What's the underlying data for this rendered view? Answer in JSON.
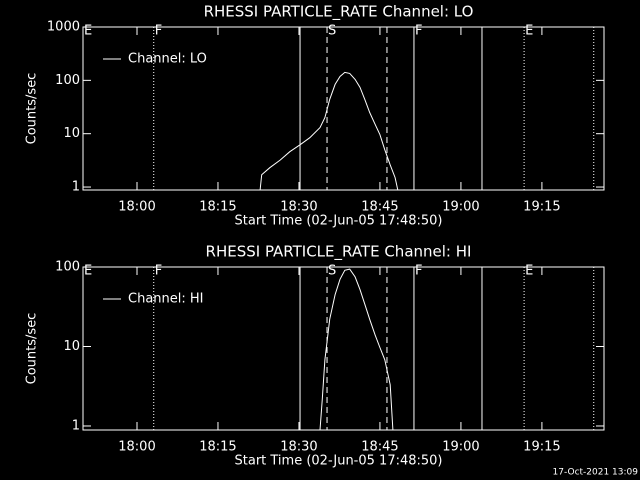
{
  "chart_data": [
    {
      "type": "line",
      "title": "RHESSI PARTICLE_RATE Channel: LO",
      "x_label": "Start Time (02-Jun-05 17:48:50)",
      "y_label": "Counts/sec",
      "log_y": true,
      "color": "#ffffff",
      "xlim": [
        1070,
        1166.5
      ],
      "xticks": [
        {
          "value": 1080,
          "label": "18:00"
        },
        {
          "value": 1095,
          "label": "18:15"
        },
        {
          "value": 1110,
          "label": "18:30"
        },
        {
          "value": 1125,
          "label": "18:45"
        },
        {
          "value": 1140,
          "label": "19:00"
        },
        {
          "value": 1155,
          "label": "19:15"
        }
      ],
      "ylim": [
        0.88,
        1000
      ],
      "yticks": [
        1,
        10,
        100,
        1000
      ],
      "series": [
        {
          "name": "Channel: LO",
          "color": "#ffffff",
          "x": [
            1102.8,
            1103.1,
            1104.6,
            1106.5,
            1108.3,
            1110.2,
            1112.0,
            1113.9,
            1114.8,
            1115.7,
            1116.7,
            1117.6,
            1118.5,
            1119.4,
            1120.4,
            1121.3,
            1122.2,
            1123.1,
            1124.1,
            1125.0,
            1125.9,
            1126.9,
            1127.8,
            1128.3
          ],
          "values": [
            0.88,
            1.7,
            2.3,
            3.2,
            4.6,
            6.2,
            8.4,
            13,
            20,
            44,
            84,
            118,
            141,
            135,
            104,
            74,
            44,
            25,
            15,
            9.6,
            5,
            2.6,
            1.5,
            0.88
          ]
        }
      ],
      "vlines": [
        {
          "x": 1083.1,
          "style": "dotted"
        },
        {
          "x": 1110.2,
          "style": "solid"
        },
        {
          "x": 1115.2,
          "style": "dashed"
        },
        {
          "x": 1126.3,
          "style": "dashed"
        },
        {
          "x": 1131.3,
          "style": "solid"
        },
        {
          "x": 1143.9,
          "style": "solid"
        },
        {
          "x": 1151.7,
          "style": "dotted"
        },
        {
          "x": 1164.6,
          "style": "dotted"
        }
      ],
      "flags": [
        {
          "text": "E",
          "x": 1070
        },
        {
          "text": "F",
          "x": 1083.1
        },
        {
          "text": "S",
          "x": 1115.2
        },
        {
          "text": "F",
          "x": 1131.3
        },
        {
          "text": "E",
          "x": 1151.7
        }
      ]
    },
    {
      "type": "line",
      "title": "RHESSI PARTICLE_RATE Channel: HI",
      "x_label": "Start Time (02-Jun-05 17:48:50)",
      "y_label": "Counts/sec",
      "log_y": true,
      "color": "#ffffff",
      "xlim": [
        1070,
        1166.5
      ],
      "xticks": [
        {
          "value": 1080,
          "label": "18:00"
        },
        {
          "value": 1095,
          "label": "18:15"
        },
        {
          "value": 1110,
          "label": "18:30"
        },
        {
          "value": 1125,
          "label": "18:45"
        },
        {
          "value": 1140,
          "label": "19:00"
        },
        {
          "value": 1155,
          "label": "19:15"
        }
      ],
      "ylim": [
        0.89,
        100
      ],
      "yticks": [
        1,
        10,
        100
      ],
      "series": [
        {
          "name": "Channel: HI",
          "color": "#ffffff",
          "x": [
            1113.9,
            1114.3,
            1114.8,
            1115.7,
            1116.7,
            1117.6,
            1118.5,
            1119.4,
            1120.4,
            1121.3,
            1122.2,
            1123.1,
            1124.1,
            1125.0,
            1125.9,
            1126.9,
            1127.4
          ],
          "values": [
            0.89,
            2.1,
            6.8,
            22,
            45,
            70,
            91,
            94,
            75,
            52,
            34,
            22,
            14,
            9.7,
            6.8,
            3.3,
            0.89
          ]
        }
      ],
      "vlines": [
        {
          "x": 1083.1,
          "style": "dotted"
        },
        {
          "x": 1110.2,
          "style": "solid"
        },
        {
          "x": 1115.2,
          "style": "dashed"
        },
        {
          "x": 1126.3,
          "style": "dashed"
        },
        {
          "x": 1131.3,
          "style": "solid"
        },
        {
          "x": 1143.9,
          "style": "solid"
        },
        {
          "x": 1151.7,
          "style": "dotted"
        },
        {
          "x": 1164.6,
          "style": "dotted"
        }
      ],
      "flags": [
        {
          "text": "E",
          "x": 1070
        },
        {
          "text": "F",
          "x": 1083.1
        },
        {
          "text": "S",
          "x": 1115.2
        },
        {
          "text": "F",
          "x": 1131.3
        },
        {
          "text": "E",
          "x": 1151.7
        }
      ]
    }
  ],
  "footer": "17-Oct-2021 13:09"
}
